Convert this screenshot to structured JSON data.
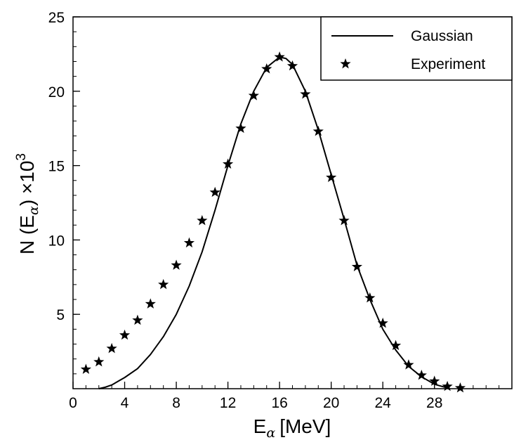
{
  "chart_data": {
    "type": "line",
    "xlabel": {
      "base": "E",
      "sub": "α",
      "unit": "[MeV]"
    },
    "ylabel": {
      "prefix": "N (E",
      "sub": "α",
      "suffix": ") ×10",
      "sup": "3"
    },
    "xlim": [
      0,
      34
    ],
    "ylim": [
      0,
      25
    ],
    "x_ticks": [
      0,
      4,
      8,
      12,
      16,
      20,
      24,
      28
    ],
    "x_minor_step": 1,
    "y_ticks": [
      5,
      10,
      15,
      20,
      25
    ],
    "y_minor_step": 1,
    "grid": false,
    "legend_position": "top-right",
    "series": [
      {
        "name": "Gaussian",
        "style": "line",
        "color": "#000000",
        "x": [
          2,
          2.5,
          3,
          3.5,
          4,
          5,
          6,
          7,
          8,
          9,
          10,
          11,
          12,
          13,
          14,
          15,
          16,
          16.5,
          17,
          18,
          19,
          20,
          21,
          22,
          23,
          24,
          25,
          26,
          27,
          28,
          29
        ],
        "y": [
          0.0,
          0.1,
          0.25,
          0.5,
          0.75,
          1.35,
          2.3,
          3.5,
          5.0,
          6.9,
          9.2,
          12.0,
          15.0,
          17.8,
          20.0,
          21.6,
          22.3,
          22.2,
          21.8,
          20.0,
          17.4,
          14.4,
          11.4,
          8.3,
          6.0,
          4.0,
          2.6,
          1.5,
          0.8,
          0.3,
          0.05
        ]
      },
      {
        "name": "Experiment",
        "style": "star",
        "color": "#000000",
        "x": [
          1,
          2,
          3,
          4,
          5,
          6,
          7,
          8,
          9,
          10,
          11,
          12,
          13,
          14,
          15,
          16,
          17,
          18,
          19,
          20,
          21,
          22,
          23,
          24,
          25,
          26,
          27,
          28,
          29,
          30
        ],
        "y": [
          1.3,
          1.8,
          2.7,
          3.6,
          4.6,
          5.7,
          7.0,
          8.3,
          9.8,
          11.3,
          13.2,
          15.1,
          17.5,
          19.7,
          21.5,
          22.3,
          21.7,
          19.8,
          17.3,
          14.2,
          11.3,
          8.2,
          6.1,
          4.4,
          2.9,
          1.6,
          0.9,
          0.5,
          0.15,
          0.05
        ]
      }
    ]
  }
}
